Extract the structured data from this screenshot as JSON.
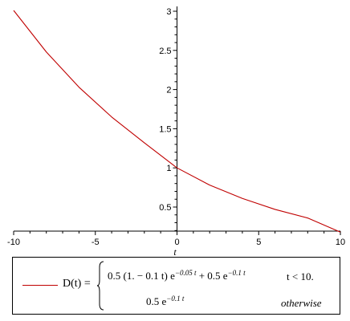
{
  "chart_data": {
    "type": "line",
    "title": "",
    "xlabel": "t",
    "ylabel": "",
    "xlim": [
      -10,
      10
    ],
    "ylim": [
      0.1,
      3.05
    ],
    "x_ticks": [
      "-10",
      "-5",
      "0",
      "5",
      "10"
    ],
    "y_ticks": [
      "0.5",
      "1",
      "1.5",
      "2",
      "2.5",
      "3"
    ],
    "grid": false,
    "series": [
      {
        "name": "D(t)",
        "color": "#c00000",
        "x": [
          -10,
          -8,
          -6,
          -4,
          -2,
          0,
          2,
          4,
          6,
          8,
          10
        ],
        "y": [
          3.01,
          2.48,
          2.03,
          1.65,
          1.32,
          1.0,
          0.78,
          0.61,
          0.47,
          0.36,
          0.18
        ]
      }
    ],
    "legend": {
      "position": "bottom",
      "label": "D(t) =",
      "cases": [
        {
          "expr_base": "0.5 (1. − 0.1 t) e",
          "expr_exp": "−0.05 t",
          "expr_mid": " + 0.5 e",
          "expr_exp2": "−0.1 t",
          "condition": "t < 10."
        },
        {
          "expr_base": "0.5 e",
          "expr_exp": "−0.1 t",
          "condition": "otherwise"
        }
      ]
    }
  }
}
